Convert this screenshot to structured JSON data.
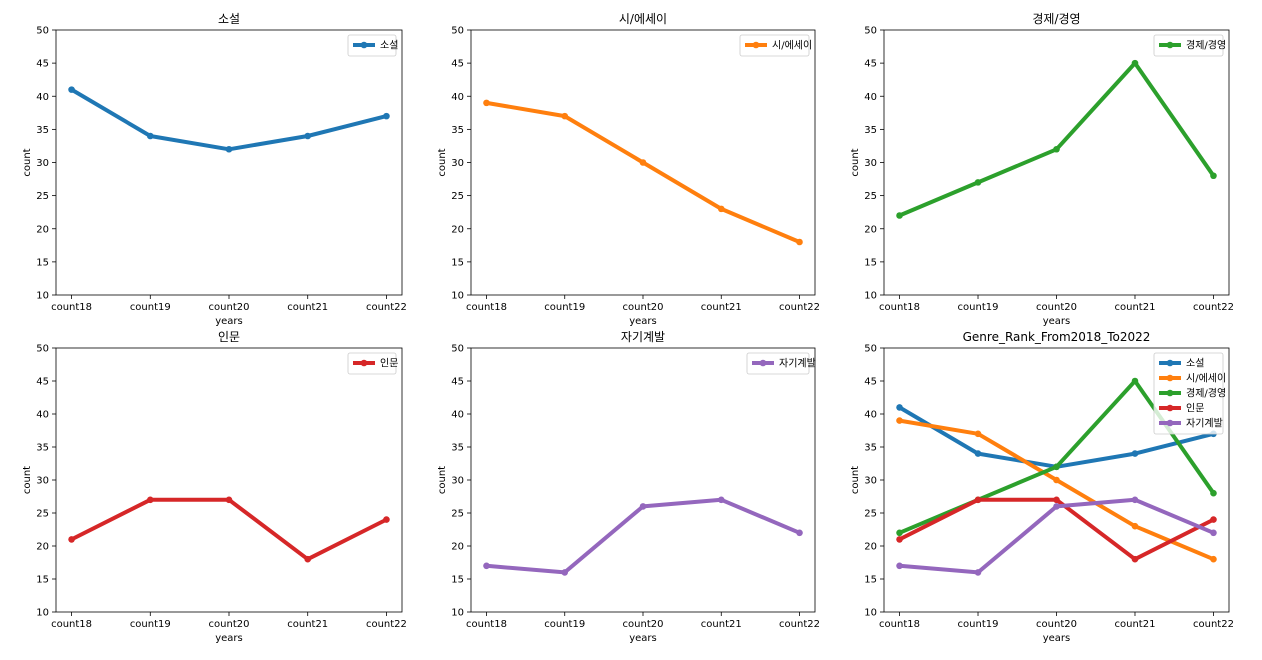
{
  "figure": {
    "background": "#ffffff"
  },
  "chart_data": [
    {
      "type": "line",
      "title": "소설",
      "xlabel": "years",
      "ylabel": "count",
      "categories": [
        "count18",
        "count19",
        "count20",
        "count21",
        "count22"
      ],
      "ylim": [
        10,
        50
      ],
      "yticks": [
        10,
        15,
        20,
        25,
        30,
        35,
        40,
        45,
        50
      ],
      "grid": false,
      "legend_position": "top-right",
      "series": [
        {
          "name": "소설",
          "color": "#1f77b4",
          "values": [
            41,
            34,
            32,
            34,
            37
          ]
        }
      ]
    },
    {
      "type": "line",
      "title": "시/에세이",
      "xlabel": "years",
      "ylabel": "count",
      "categories": [
        "count18",
        "count19",
        "count20",
        "count21",
        "count22"
      ],
      "ylim": [
        10,
        50
      ],
      "yticks": [
        10,
        15,
        20,
        25,
        30,
        35,
        40,
        45,
        50
      ],
      "grid": false,
      "legend_position": "top-right",
      "series": [
        {
          "name": "시/에세이",
          "color": "#ff7f0e",
          "values": [
            39,
            37,
            30,
            23,
            18
          ]
        }
      ]
    },
    {
      "type": "line",
      "title": "경제/경영",
      "xlabel": "years",
      "ylabel": "count",
      "categories": [
        "count18",
        "count19",
        "count20",
        "count21",
        "count22"
      ],
      "ylim": [
        10,
        50
      ],
      "yticks": [
        10,
        15,
        20,
        25,
        30,
        35,
        40,
        45,
        50
      ],
      "grid": false,
      "legend_position": "top-right",
      "series": [
        {
          "name": "경제/경영",
          "color": "#2ca02c",
          "values": [
            22,
            27,
            32,
            45,
            28
          ]
        }
      ]
    },
    {
      "type": "line",
      "title": "인문",
      "xlabel": "years",
      "ylabel": "count",
      "categories": [
        "count18",
        "count19",
        "count20",
        "count21",
        "count22"
      ],
      "ylim": [
        10,
        50
      ],
      "yticks": [
        10,
        15,
        20,
        25,
        30,
        35,
        40,
        45,
        50
      ],
      "grid": false,
      "legend_position": "top-right",
      "series": [
        {
          "name": "인문",
          "color": "#d62728",
          "values": [
            21,
            27,
            27,
            18,
            24
          ]
        }
      ]
    },
    {
      "type": "line",
      "title": "자기계발",
      "xlabel": "years",
      "ylabel": "count",
      "categories": [
        "count18",
        "count19",
        "count20",
        "count21",
        "count22"
      ],
      "ylim": [
        10,
        50
      ],
      "yticks": [
        10,
        15,
        20,
        25,
        30,
        35,
        40,
        45,
        50
      ],
      "grid": false,
      "legend_position": "top-right",
      "series": [
        {
          "name": "자기계발",
          "color": "#9467bd",
          "values": [
            17,
            16,
            26,
            27,
            22
          ]
        }
      ]
    },
    {
      "type": "line",
      "title": "Genre_Rank_From2018_To2022",
      "xlabel": "years",
      "ylabel": "count",
      "categories": [
        "count18",
        "count19",
        "count20",
        "count21",
        "count22"
      ],
      "ylim": [
        10,
        50
      ],
      "yticks": [
        10,
        15,
        20,
        25,
        30,
        35,
        40,
        45,
        50
      ],
      "grid": false,
      "legend_position": "top-right",
      "series": [
        {
          "name": "소설",
          "color": "#1f77b4",
          "values": [
            41,
            34,
            32,
            34,
            37
          ]
        },
        {
          "name": "시/에세이",
          "color": "#ff7f0e",
          "values": [
            39,
            37,
            30,
            23,
            18
          ]
        },
        {
          "name": "경제/경영",
          "color": "#2ca02c",
          "values": [
            22,
            27,
            32,
            45,
            28
          ]
        },
        {
          "name": "인문",
          "color": "#d62728",
          "values": [
            21,
            27,
            27,
            18,
            24
          ]
        },
        {
          "name": "자기계발",
          "color": "#9467bd",
          "values": [
            17,
            16,
            26,
            27,
            22
          ]
        }
      ]
    }
  ]
}
